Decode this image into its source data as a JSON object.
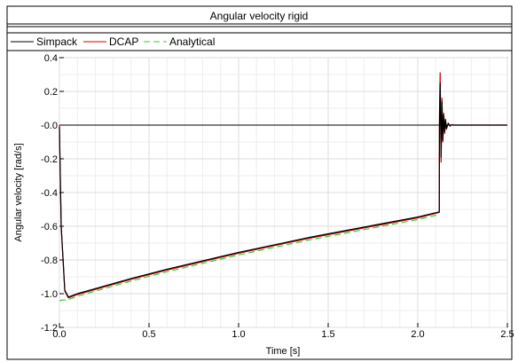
{
  "chart_data": {
    "type": "line",
    "title": "Angular velocity rigid",
    "xlabel": "Time [s]",
    "ylabel": "Angular velocity [rad/s]",
    "xlim": [
      0,
      2.5
    ],
    "ylim": [
      -1.2,
      0.4
    ],
    "xticks": [
      "0.0",
      "0.5",
      "1.0",
      "1.5",
      "2.0",
      "2.5"
    ],
    "yticks": [
      "0.4",
      "0.2",
      "-0.0",
      "-0.2",
      "-0.4",
      "-0.6",
      "-0.8",
      "-1.0",
      "-1.2"
    ],
    "grid": true,
    "legend_placement": "top-left",
    "series": [
      {
        "name": "Simpack",
        "color": "#000000",
        "style": "solid",
        "x": [
          0,
          0.003,
          0.01,
          0.03,
          0.05,
          0.1,
          0.2,
          0.4,
          0.6,
          0.8,
          1.0,
          1.2,
          1.4,
          1.6,
          1.8,
          2.0,
          2.12,
          2.121,
          2.125,
          2.13,
          2.135,
          2.14,
          2.145,
          2.15,
          2.155,
          2.16,
          2.17,
          2.18,
          2.19,
          2.2,
          2.3,
          2.5
        ],
        "y": [
          -0.01,
          -0.2,
          -0.6,
          -0.98,
          -1.02,
          -1.0,
          -0.97,
          -0.91,
          -0.855,
          -0.805,
          -0.755,
          -0.71,
          -0.665,
          -0.625,
          -0.585,
          -0.545,
          -0.515,
          0.0,
          0.25,
          -0.19,
          0.14,
          -0.09,
          0.06,
          -0.04,
          0.03,
          -0.02,
          0.01,
          -0.005,
          0.003,
          0.0,
          0.0,
          0.0
        ]
      },
      {
        "name": "DCAP",
        "color": "#cc0000",
        "style": "solid",
        "x": [
          0,
          0.003,
          0.01,
          0.03,
          0.05,
          0.1,
          0.2,
          0.4,
          0.6,
          0.8,
          1.0,
          1.2,
          1.4,
          1.6,
          1.8,
          2.0,
          2.12,
          2.121,
          2.125,
          2.13,
          2.135,
          2.14,
          2.145,
          2.15,
          2.155,
          2.16,
          2.17,
          2.18,
          2.19,
          2.2,
          2.3,
          2.5
        ],
        "y": [
          0.0,
          -0.2,
          -0.61,
          -0.985,
          -1.025,
          -1.005,
          -0.975,
          -0.915,
          -0.86,
          -0.81,
          -0.76,
          -0.715,
          -0.67,
          -0.63,
          -0.59,
          -0.55,
          -0.518,
          0.05,
          0.31,
          -0.22,
          0.16,
          -0.1,
          0.07,
          -0.05,
          0.035,
          -0.025,
          0.012,
          -0.006,
          0.003,
          0.0,
          0.0,
          0.0
        ]
      },
      {
        "name": "Analytical",
        "color": "#33cc33",
        "style": "dashed",
        "x": [
          0,
          0.05,
          0.1,
          0.2,
          0.4,
          0.6,
          0.8,
          1.0,
          1.2,
          1.4,
          1.6,
          1.8,
          2.0,
          2.12
        ],
        "y": [
          -1.04,
          -1.035,
          -1.015,
          -0.985,
          -0.925,
          -0.87,
          -0.82,
          -0.77,
          -0.725,
          -0.68,
          -0.64,
          -0.6,
          -0.56,
          -0.53
        ]
      }
    ]
  }
}
